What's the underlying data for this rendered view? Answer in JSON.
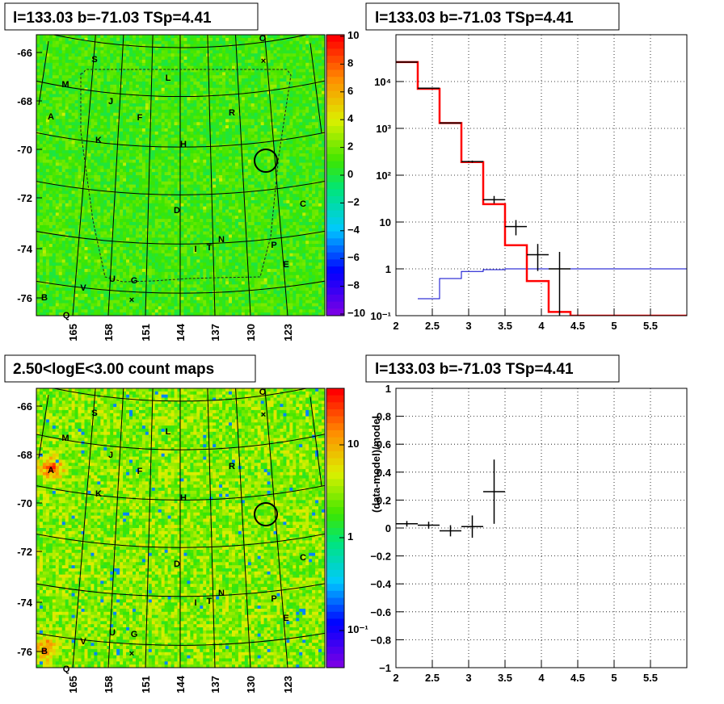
{
  "chart_data": [
    {
      "type": "heatmap",
      "title": "l=133.03 b=-71.03 TSp=4.41",
      "description_axis": "galactic latitude vs longitude residual map",
      "yticks": [
        "-66",
        "-68",
        "-70",
        "-72",
        "-74",
        "-76"
      ],
      "xticks": [
        "165",
        "158",
        "151",
        "144",
        "137",
        "130",
        "123"
      ],
      "colorbar": {
        "scale": "linear",
        "ticks": [
          "10",
          "8",
          "6",
          "4",
          "2",
          "0",
          "−2",
          "−4",
          "−6",
          "−8",
          "−10"
        ],
        "range": [
          -10,
          10
        ]
      },
      "sources": [
        "O",
        "S",
        "M",
        "L",
        "J",
        "A",
        "F",
        "R",
        "K",
        "H",
        "C",
        "D",
        "I",
        "T",
        "N",
        "P",
        "E",
        "U",
        "G",
        "V",
        "B",
        "Q"
      ]
    },
    {
      "type": "line",
      "title": "l=133.03 b=-71.03 TSp=4.41",
      "xlim": [
        2,
        6
      ],
      "ylim": [
        0.1,
        100000
      ],
      "yscale": "log",
      "xticks": [
        "2",
        "2.5",
        "3",
        "3.5",
        "4",
        "4.5",
        "5",
        "5.5"
      ],
      "yticks": [
        "10⁻¹",
        "1",
        "10",
        "10²",
        "10³",
        "10⁴"
      ],
      "grid": true,
      "model_step": {
        "color": "#ff0000",
        "edges": [
          2.0,
          2.3,
          2.6,
          2.9,
          3.2,
          3.5,
          3.8,
          4.1,
          4.4,
          6.0
        ],
        "values": [
          26000,
          7000,
          1300,
          190,
          24,
          3.2,
          0.55,
          0.12,
          0.1
        ]
      },
      "source_step": {
        "color": "#0000cc",
        "edges": [
          2.3,
          2.6,
          2.9,
          3.2,
          3.5,
          3.8,
          6.0
        ],
        "values": [
          0.23,
          0.62,
          0.88,
          0.96,
          1.0,
          1.0
        ]
      },
      "data_points": [
        {
          "x": 2.15,
          "xerr": 0.15,
          "y": 26000,
          "ylo": 25800,
          "yhi": 26200
        },
        {
          "x": 2.45,
          "xerr": 0.15,
          "y": 7200,
          "ylo": 7100,
          "yhi": 7300
        },
        {
          "x": 2.75,
          "xerr": 0.15,
          "y": 1300,
          "ylo": 1270,
          "yhi": 1330
        },
        {
          "x": 3.05,
          "xerr": 0.15,
          "y": 195,
          "ylo": 185,
          "yhi": 205
        },
        {
          "x": 3.35,
          "xerr": 0.15,
          "y": 30,
          "ylo": 25,
          "yhi": 36
        },
        {
          "x": 3.65,
          "xerr": 0.15,
          "y": 8,
          "ylo": 5.2,
          "yhi": 11
        },
        {
          "x": 3.95,
          "xerr": 0.15,
          "y": 2,
          "ylo": 0.9,
          "yhi": 3.4
        },
        {
          "x": 4.25,
          "xerr": 0.15,
          "y": 1,
          "ylo": 0.08,
          "yhi": 2.3
        }
      ]
    },
    {
      "type": "heatmap",
      "title": "2.50<logE<3.00 count maps",
      "yticks": [
        "-66",
        "-68",
        "-70",
        "-72",
        "-74",
        "-76"
      ],
      "xticks": [
        "165",
        "158",
        "151",
        "144",
        "137",
        "130",
        "123"
      ],
      "colorbar": {
        "scale": "log",
        "ticks": [
          "10",
          "1",
          "10⁻¹"
        ]
      },
      "sources": [
        "O",
        "S",
        "M",
        "L",
        "J",
        "A",
        "F",
        "R",
        "K",
        "H",
        "C",
        "D",
        "I",
        "T",
        "N",
        "P",
        "E",
        "U",
        "G",
        "V",
        "B",
        "Q"
      ]
    },
    {
      "type": "scatter",
      "title": "l=133.03 b=-71.03 TSp=4.41",
      "ylabel": "(data-model)/model",
      "xlim": [
        2,
        6
      ],
      "ylim": [
        -1,
        1
      ],
      "xticks": [
        "2",
        "2.5",
        "3",
        "3.5",
        "4",
        "4.5",
        "5",
        "5.5"
      ],
      "yticks": [
        "1",
        "0.8",
        "0.6",
        "0.4",
        "0.2",
        "0",
        "−0.2",
        "−0.4",
        "−0.6",
        "−0.8",
        "−1"
      ],
      "grid": true,
      "points": [
        {
          "x": 2.15,
          "xerr": 0.15,
          "y": 0.03,
          "yerr": 0.02
        },
        {
          "x": 2.45,
          "xerr": 0.15,
          "y": 0.02,
          "yerr": 0.025
        },
        {
          "x": 2.75,
          "xerr": 0.15,
          "y": -0.02,
          "yerr": 0.04
        },
        {
          "x": 3.05,
          "xerr": 0.15,
          "y": 0.01,
          "yerr": 0.08
        },
        {
          "x": 3.35,
          "xerr": 0.15,
          "y": 0.26,
          "yerr": 0.23
        }
      ]
    }
  ]
}
